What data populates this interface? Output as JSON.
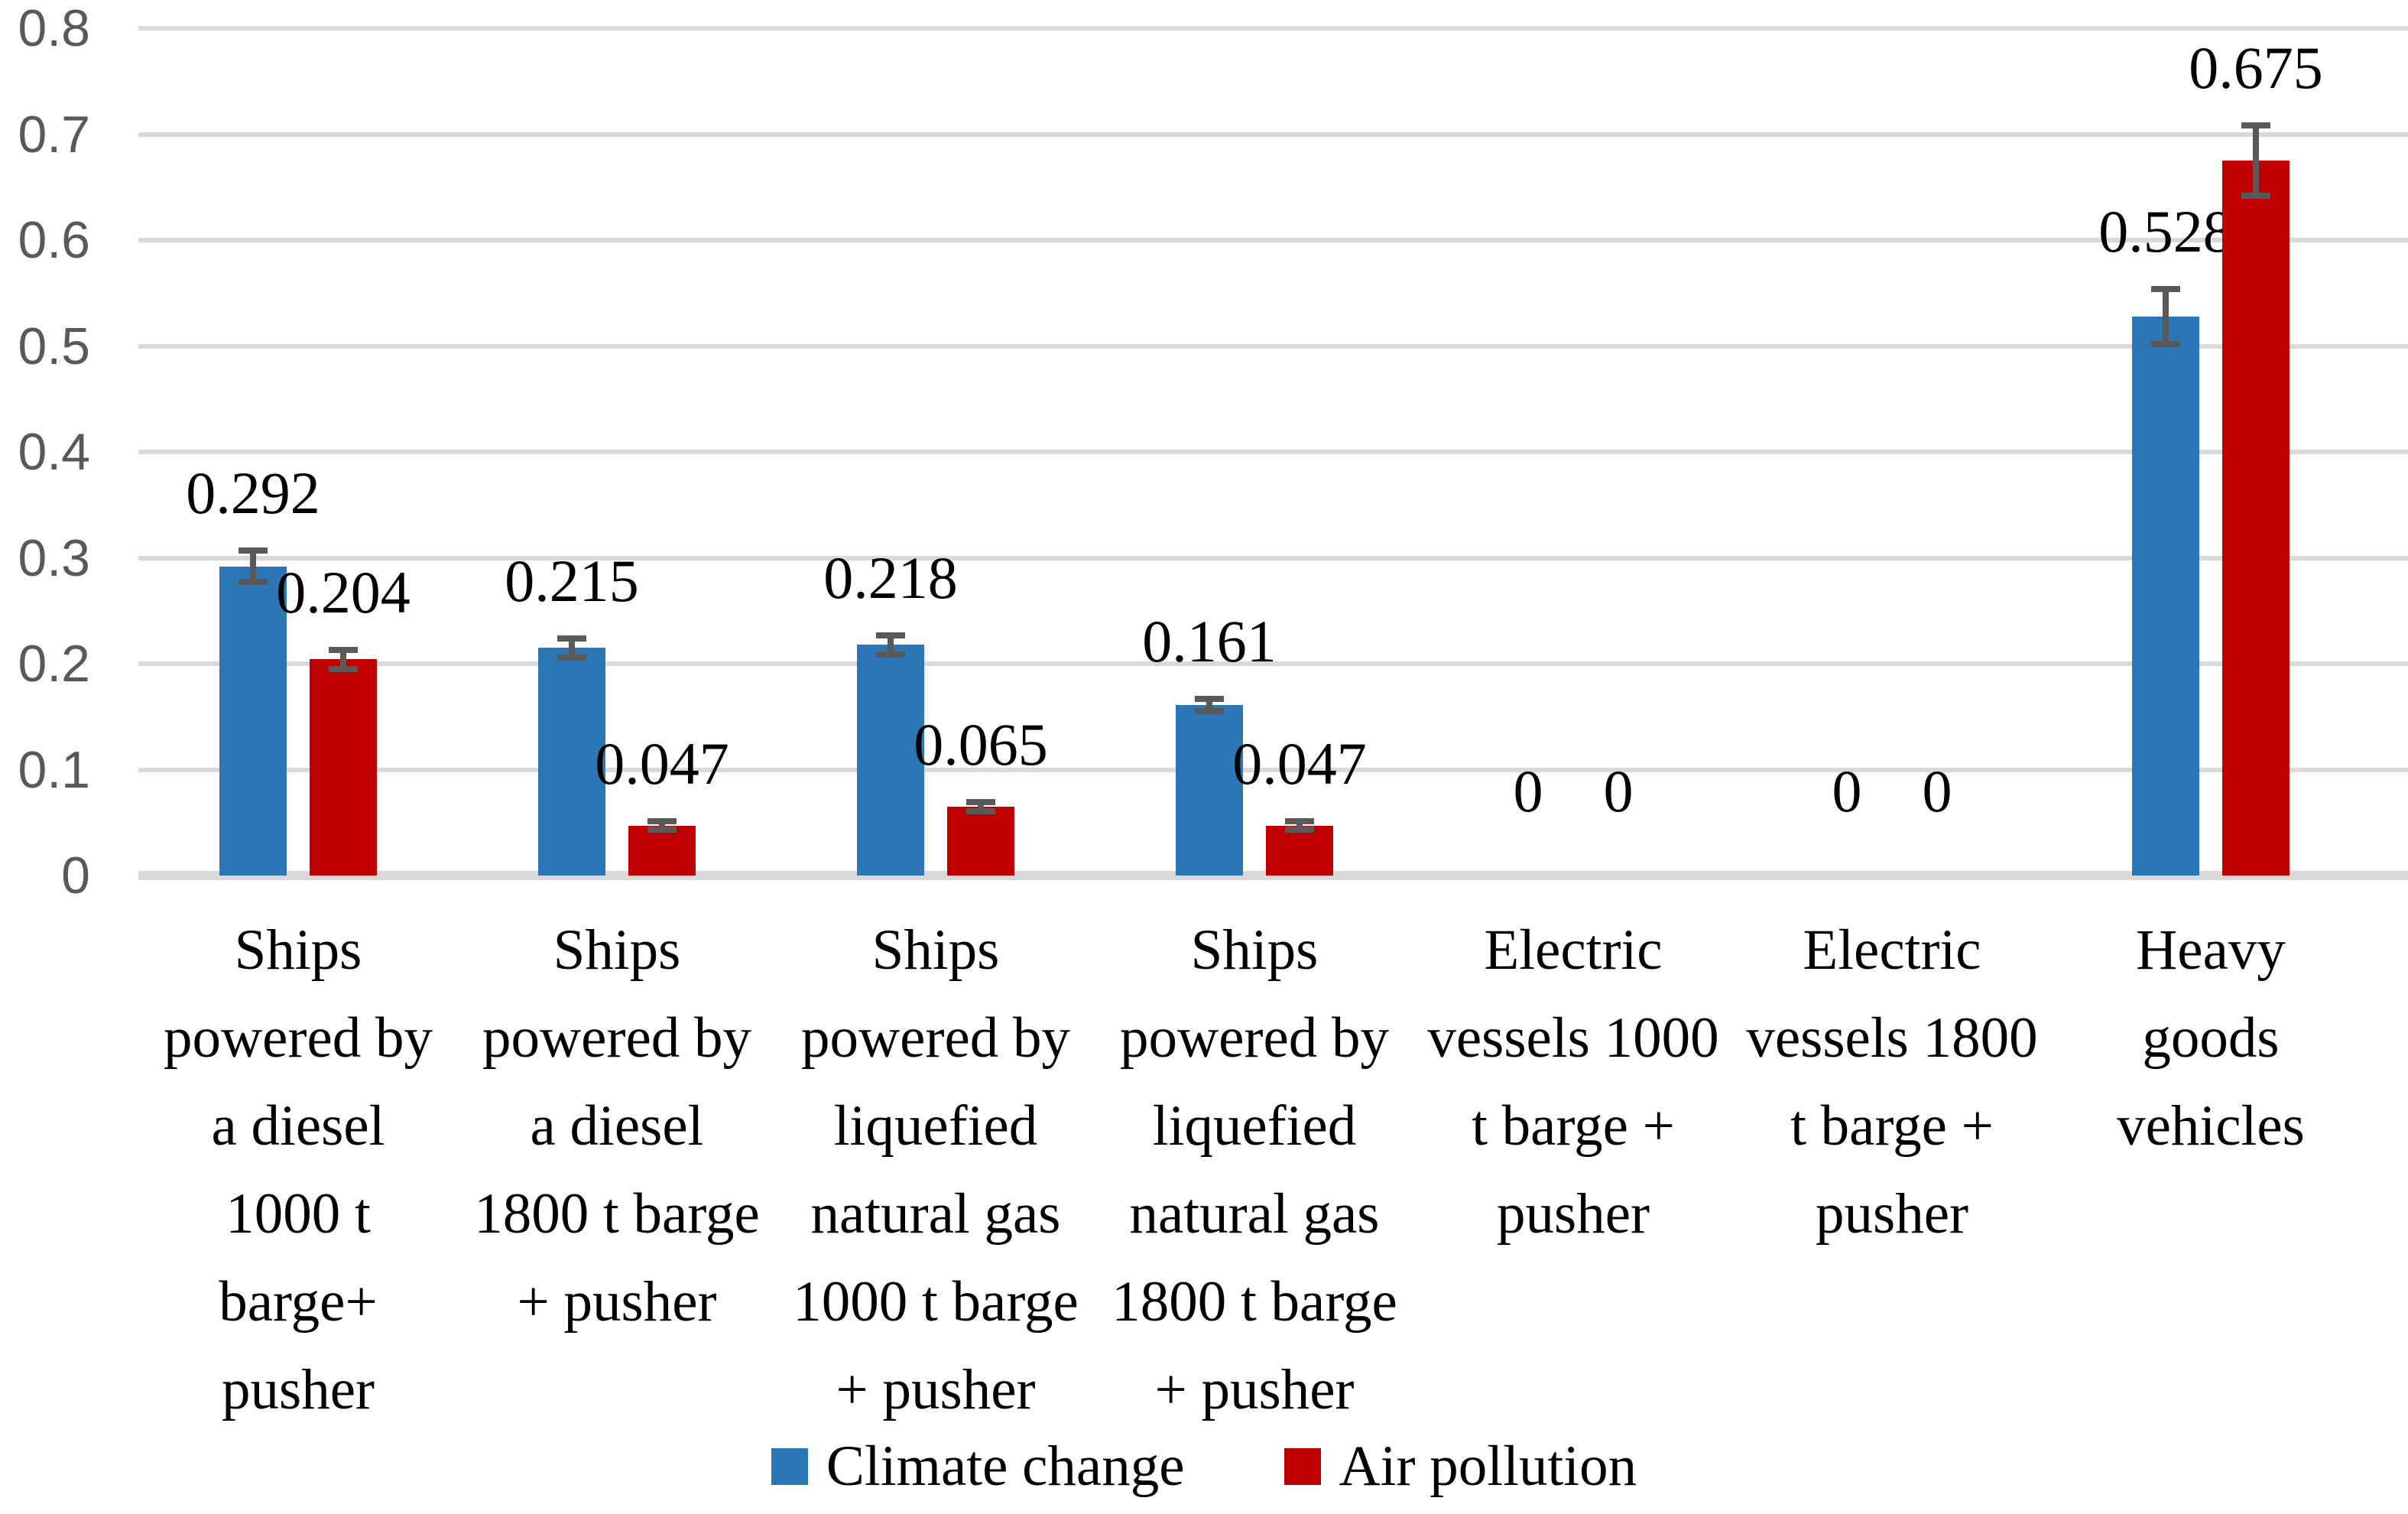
{
  "chart_data": {
    "type": "bar",
    "title": "",
    "categories": [
      "Ships powered by a diesel 1000 t barge+ pusher",
      "Ships powered by a diesel 1800 t barge + pusher",
      "Ships powered by liquefied natural gas 1000 t barge + pusher",
      "Ships powered by liquefied natural gas 1800 t barge + pusher",
      "Electric vessels 1000 t barge + pusher",
      "Electric vessels 1800 t barge + pusher",
      "Heavy goods vehicles"
    ],
    "category_lines": [
      [
        "Ships",
        "powered by",
        "a diesel",
        "1000 t",
        "barge+",
        "pusher"
      ],
      [
        "Ships",
        "powered by",
        "a diesel",
        "1800 t barge",
        "+ pusher"
      ],
      [
        "Ships",
        "powered by",
        "liquefied",
        "natural gas",
        "1000 t barge",
        "+ pusher"
      ],
      [
        "Ships",
        "powered by",
        "liquefied",
        "natural gas",
        "1800 t barge",
        "+ pusher"
      ],
      [
        "Electric",
        "vessels 1000",
        "t barge +",
        "pusher"
      ],
      [
        "Electric",
        "vessels 1800",
        "t barge +",
        "pusher"
      ],
      [
        "Heavy",
        "goods",
        "vehicles"
      ]
    ],
    "series": [
      {
        "name": "Climate change",
        "color": "#2D76B5",
        "values": [
          0.292,
          0.215,
          0.218,
          0.161,
          0,
          0,
          0.528
        ],
        "errors": [
          0.015,
          0.009,
          0.009,
          0.006,
          0,
          0,
          0.026
        ],
        "labels": [
          "0.292",
          "0.215",
          "0.218",
          "0.161",
          "0",
          "0",
          "0.528"
        ]
      },
      {
        "name": "Air pollution",
        "color": "#C00000",
        "values": [
          0.204,
          0.047,
          0.065,
          0.047,
          0,
          0,
          0.675
        ],
        "errors": [
          0.009,
          0.004,
          0.004,
          0.004,
          0,
          0,
          0.033
        ],
        "labels": [
          "0.204",
          "0.047",
          "0.065",
          "0.047",
          "0",
          "0",
          "0.675"
        ]
      }
    ],
    "y_axis": {
      "min": 0,
      "max": 0.8,
      "tick_step": 0.1,
      "tick_labels": [
        "0",
        "0.1",
        "0.2",
        "0.3",
        "0.4",
        "0.5",
        "0.6",
        "0.7",
        "0.8"
      ]
    },
    "grid": true,
    "legend_position": "bottom",
    "colors": {
      "error_bar": "#595959",
      "gridline": "#D9D9D9",
      "axis_line": "#D9D9D9",
      "tick_label": "#595959",
      "data_label": "#000000"
    }
  }
}
